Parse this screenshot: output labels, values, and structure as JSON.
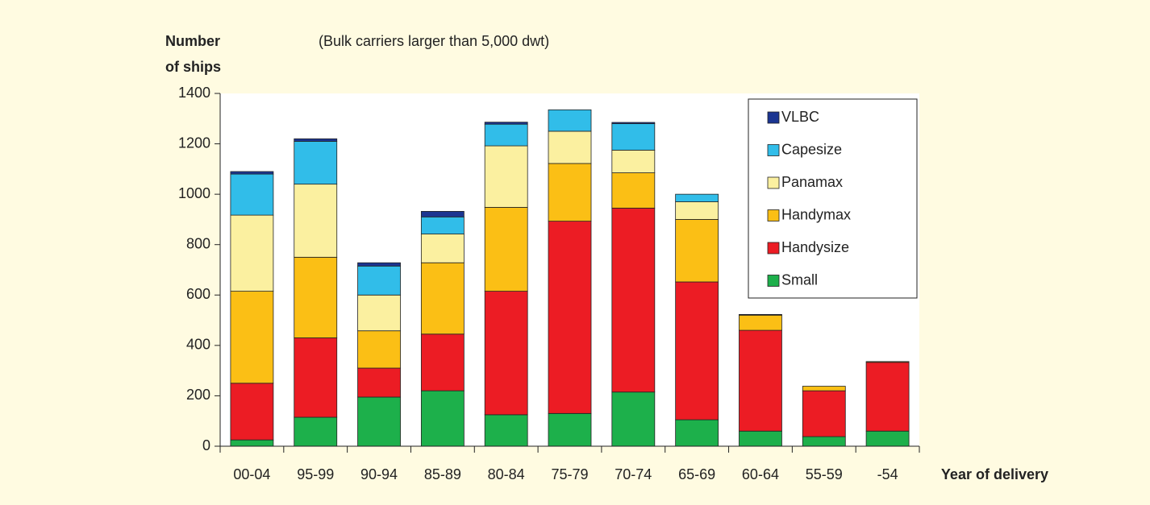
{
  "chart_data": {
    "type": "stacked_bar",
    "subtitle": "(Bulk carriers larger than 5,000 dwt)",
    "y_label_lines": [
      "Number",
      "of ships"
    ],
    "x_label": "Year of delivery",
    "categories": [
      "00-04",
      "95-99",
      "90-94",
      "85-89",
      "80-84",
      "75-79",
      "70-74",
      "65-69",
      "60-64",
      "55-59",
      "-54"
    ],
    "series": [
      {
        "name": "Small",
        "color": "#1db04b",
        "values": [
          25,
          115,
          195,
          220,
          125,
          130,
          215,
          105,
          60,
          38,
          60
        ]
      },
      {
        "name": "Handysize",
        "color": "#ec1c24",
        "values": [
          225,
          315,
          115,
          225,
          490,
          763,
          730,
          547,
          400,
          182,
          273
        ]
      },
      {
        "name": "Handymax",
        "color": "#fbbf15",
        "values": [
          365,
          320,
          148,
          283,
          333,
          229,
          140,
          248,
          60,
          18,
          3
        ]
      },
      {
        "name": "Panamax",
        "color": "#fbf0a0",
        "values": [
          302,
          290,
          142,
          114,
          244,
          128,
          90,
          70,
          0,
          0,
          0
        ]
      },
      {
        "name": "Capesize",
        "color": "#31bde9",
        "values": [
          163,
          170,
          115,
          68,
          86,
          85,
          105,
          30,
          0,
          0,
          0
        ]
      },
      {
        "name": "VLBC",
        "color": "#1b3591",
        "values": [
          10,
          10,
          13,
          22,
          8,
          0,
          5,
          0,
          3,
          0,
          0
        ]
      }
    ],
    "ylim": [
      0,
      1400
    ],
    "yticks": [
      0,
      200,
      400,
      600,
      800,
      1000,
      1200,
      1400
    ],
    "legend": "upper right"
  }
}
